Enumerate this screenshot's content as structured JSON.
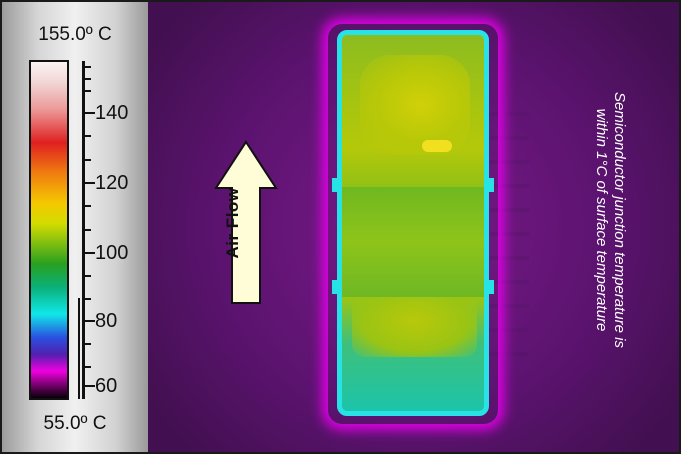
{
  "scale": {
    "max_label": "155.0º C",
    "min_label": "55.0º C",
    "ticks": [
      "140",
      "120",
      "100",
      "80",
      "60"
    ]
  },
  "arrow": {
    "label": "Air Flow"
  },
  "note": {
    "line1": "Semiconductor junction temperature is",
    "line2": "within 1°C of surface temperature"
  },
  "colors": {
    "package_outline": "#28e3e6",
    "heat_glow": "#e000e6",
    "background": "#5c1370"
  }
}
